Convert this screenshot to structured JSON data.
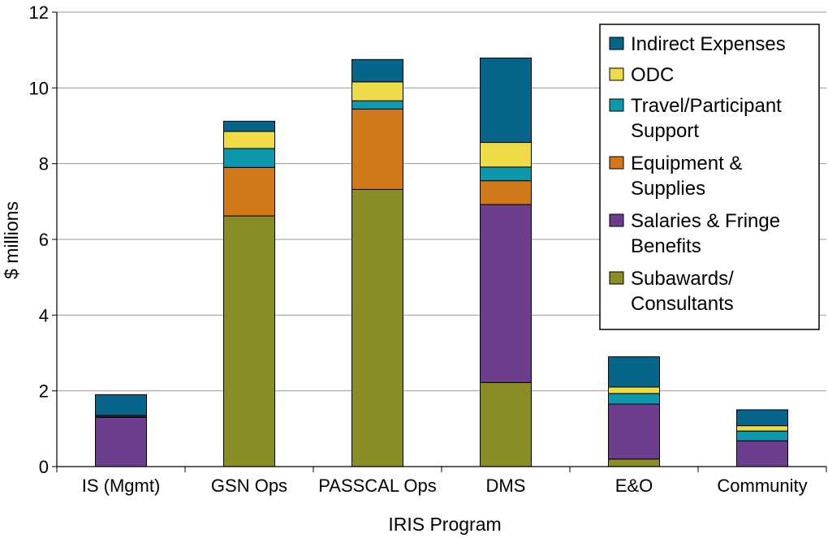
{
  "chart_data": {
    "type": "bar",
    "stacked": true,
    "title": "",
    "xlabel": "IRIS Program",
    "ylabel": "$ millions",
    "ylim": [
      0,
      12
    ],
    "yticks": [
      "0",
      "2",
      "4",
      "6",
      "8",
      "10",
      "12"
    ],
    "grid": true,
    "legend_position": "top-right",
    "categories": [
      "IS (Mgmt)",
      "GSN Ops",
      "PASSCAL Ops",
      "DMS",
      "E&O",
      "Community"
    ],
    "series": [
      {
        "name": "Subawards/ Consultants",
        "legend_lines": [
          "Subawards/",
          "Consultants"
        ],
        "color": "#8a8d26",
        "values": [
          0.0,
          6.62,
          7.32,
          2.22,
          0.2,
          0.0
        ]
      },
      {
        "name": "Salaries & Fringe Benefits",
        "legend_lines": [
          "Salaries & Fringe",
          "Benefits"
        ],
        "color": "#6c3e8d",
        "values": [
          1.3,
          0.0,
          0.0,
          4.7,
          1.45,
          0.68
        ]
      },
      {
        "name": "Equipment & Supplies",
        "legend_lines": [
          "Equipment &",
          "Supplies"
        ],
        "color": "#d0781a",
        "values": [
          0.0,
          1.28,
          2.12,
          0.63,
          0.0,
          0.0
        ]
      },
      {
        "name": "Travel/Participant Support",
        "legend_lines": [
          "Travel/Participant",
          "Support"
        ],
        "color": "#0d98ad",
        "values": [
          0.03,
          0.5,
          0.22,
          0.36,
          0.28,
          0.26
        ]
      },
      {
        "name": "ODC",
        "legend_lines": [
          "ODC"
        ],
        "color": "#eedb47",
        "values": [
          0.02,
          0.45,
          0.5,
          0.65,
          0.17,
          0.14
        ]
      },
      {
        "name": "Indirect Expenses",
        "legend_lines": [
          "Indirect Expenses"
        ],
        "color": "#07648a",
        "values": [
          0.55,
          0.27,
          0.59,
          2.23,
          0.8,
          0.42
        ]
      }
    ]
  }
}
